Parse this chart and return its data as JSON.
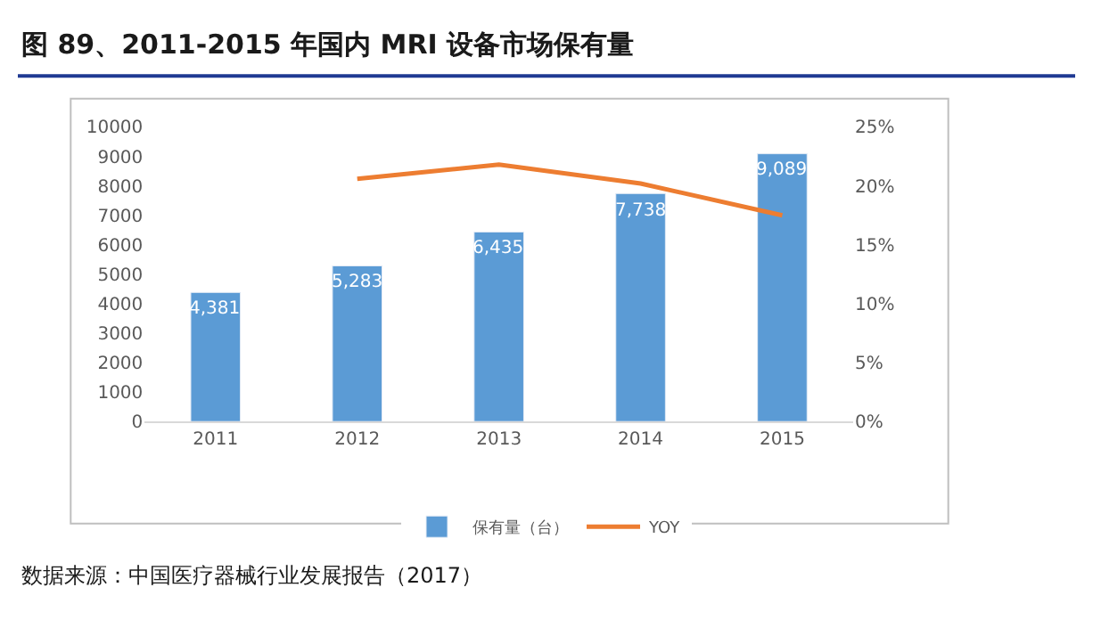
{
  "chart_data": {
    "type": "bar",
    "title": "图 89、2011-2015 年国内 MRI 设备市场保有量",
    "categories": [
      "2011",
      "2012",
      "2013",
      "2014",
      "2015"
    ],
    "series": [
      {
        "name": "保有量（台）",
        "color": "#5b9bd5",
        "values": [
          4381,
          5283,
          6435,
          7738,
          9089
        ],
        "value_labels": [
          "4,381",
          "5,283",
          "6,435",
          "7,738",
          "9,089"
        ]
      },
      {
        "name": "YOY",
        "type": "line",
        "axis": "y2",
        "color": "#ed7d31",
        "values": [
          null,
          20.6,
          21.8,
          20.2,
          17.5
        ]
      }
    ],
    "ylim": [
      0,
      10000
    ],
    "yticks": [
      0,
      1000,
      2000,
      3000,
      4000,
      5000,
      6000,
      7000,
      8000,
      9000,
      10000
    ],
    "y2lim": [
      0,
      25
    ],
    "y2ticks": [
      {
        "value": 0,
        "label": "0%"
      },
      {
        "value": 5,
        "label": "5%"
      },
      {
        "value": 10,
        "label": "10%"
      },
      {
        "value": 15,
        "label": "15%"
      },
      {
        "value": 20,
        "label": "20%"
      },
      {
        "value": 25,
        "label": "25%"
      }
    ],
    "legend": "bottom",
    "grid": false,
    "marker": "none",
    "line_style": "solid",
    "annotations": [
      "数据来源：中国医疗器械行业发展报告（2017）"
    ]
  }
}
